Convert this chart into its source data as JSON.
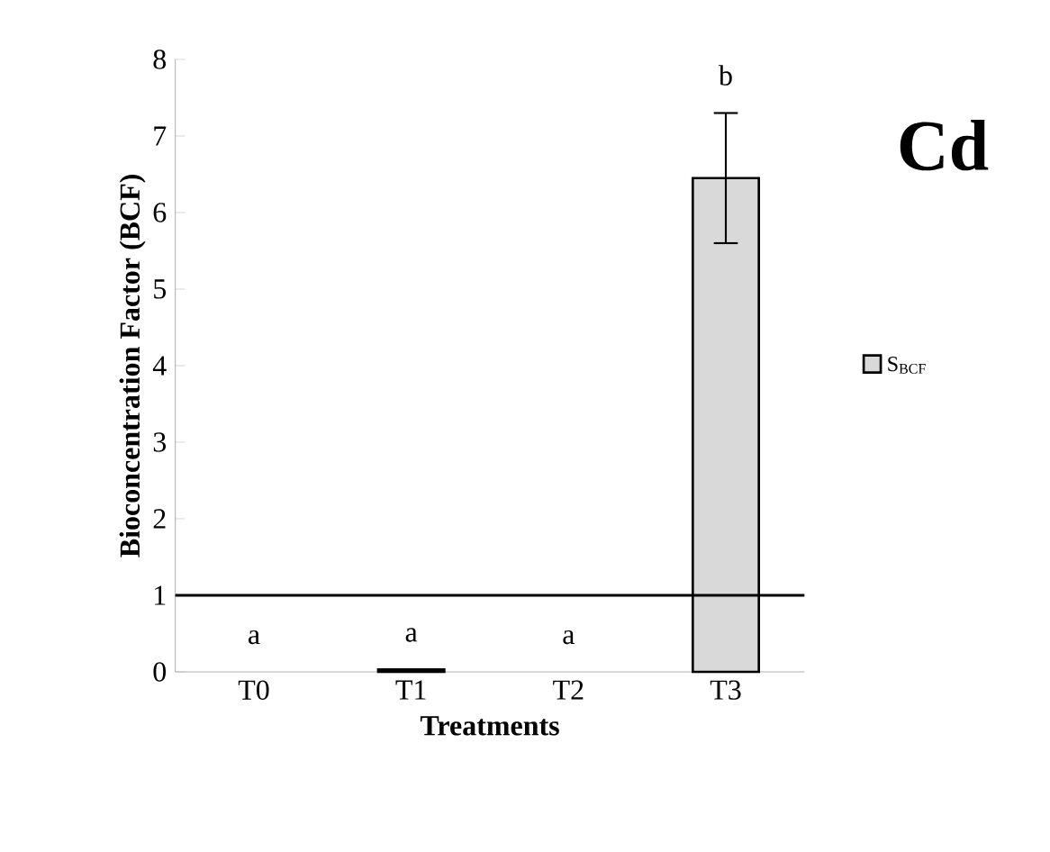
{
  "chart_data": {
    "type": "bar",
    "xlabel": "Treatments",
    "ylabel": "Bioconcentration Factor (BCF)",
    "categories": [
      "T0",
      "T1",
      "T2",
      "T3"
    ],
    "series": [
      {
        "name": "S$_{BCF}$",
        "color": "#d9d9d9",
        "values": [
          0,
          0.03,
          0,
          6.45
        ],
        "errors": [
          null,
          null,
          null,
          [
            5.6,
            7.3
          ]
        ]
      }
    ],
    "ylim": [
      0,
      8
    ],
    "yticks": [
      0,
      1,
      2,
      3,
      4,
      5,
      6,
      7,
      8
    ],
    "legend": "right",
    "grid": false,
    "ref_lines": [
      {
        "axis": "y",
        "value": 1,
        "color": "#000000"
      }
    ],
    "annotations": [
      "a",
      "a",
      "a",
      "b",
      "Cd"
    ]
  }
}
